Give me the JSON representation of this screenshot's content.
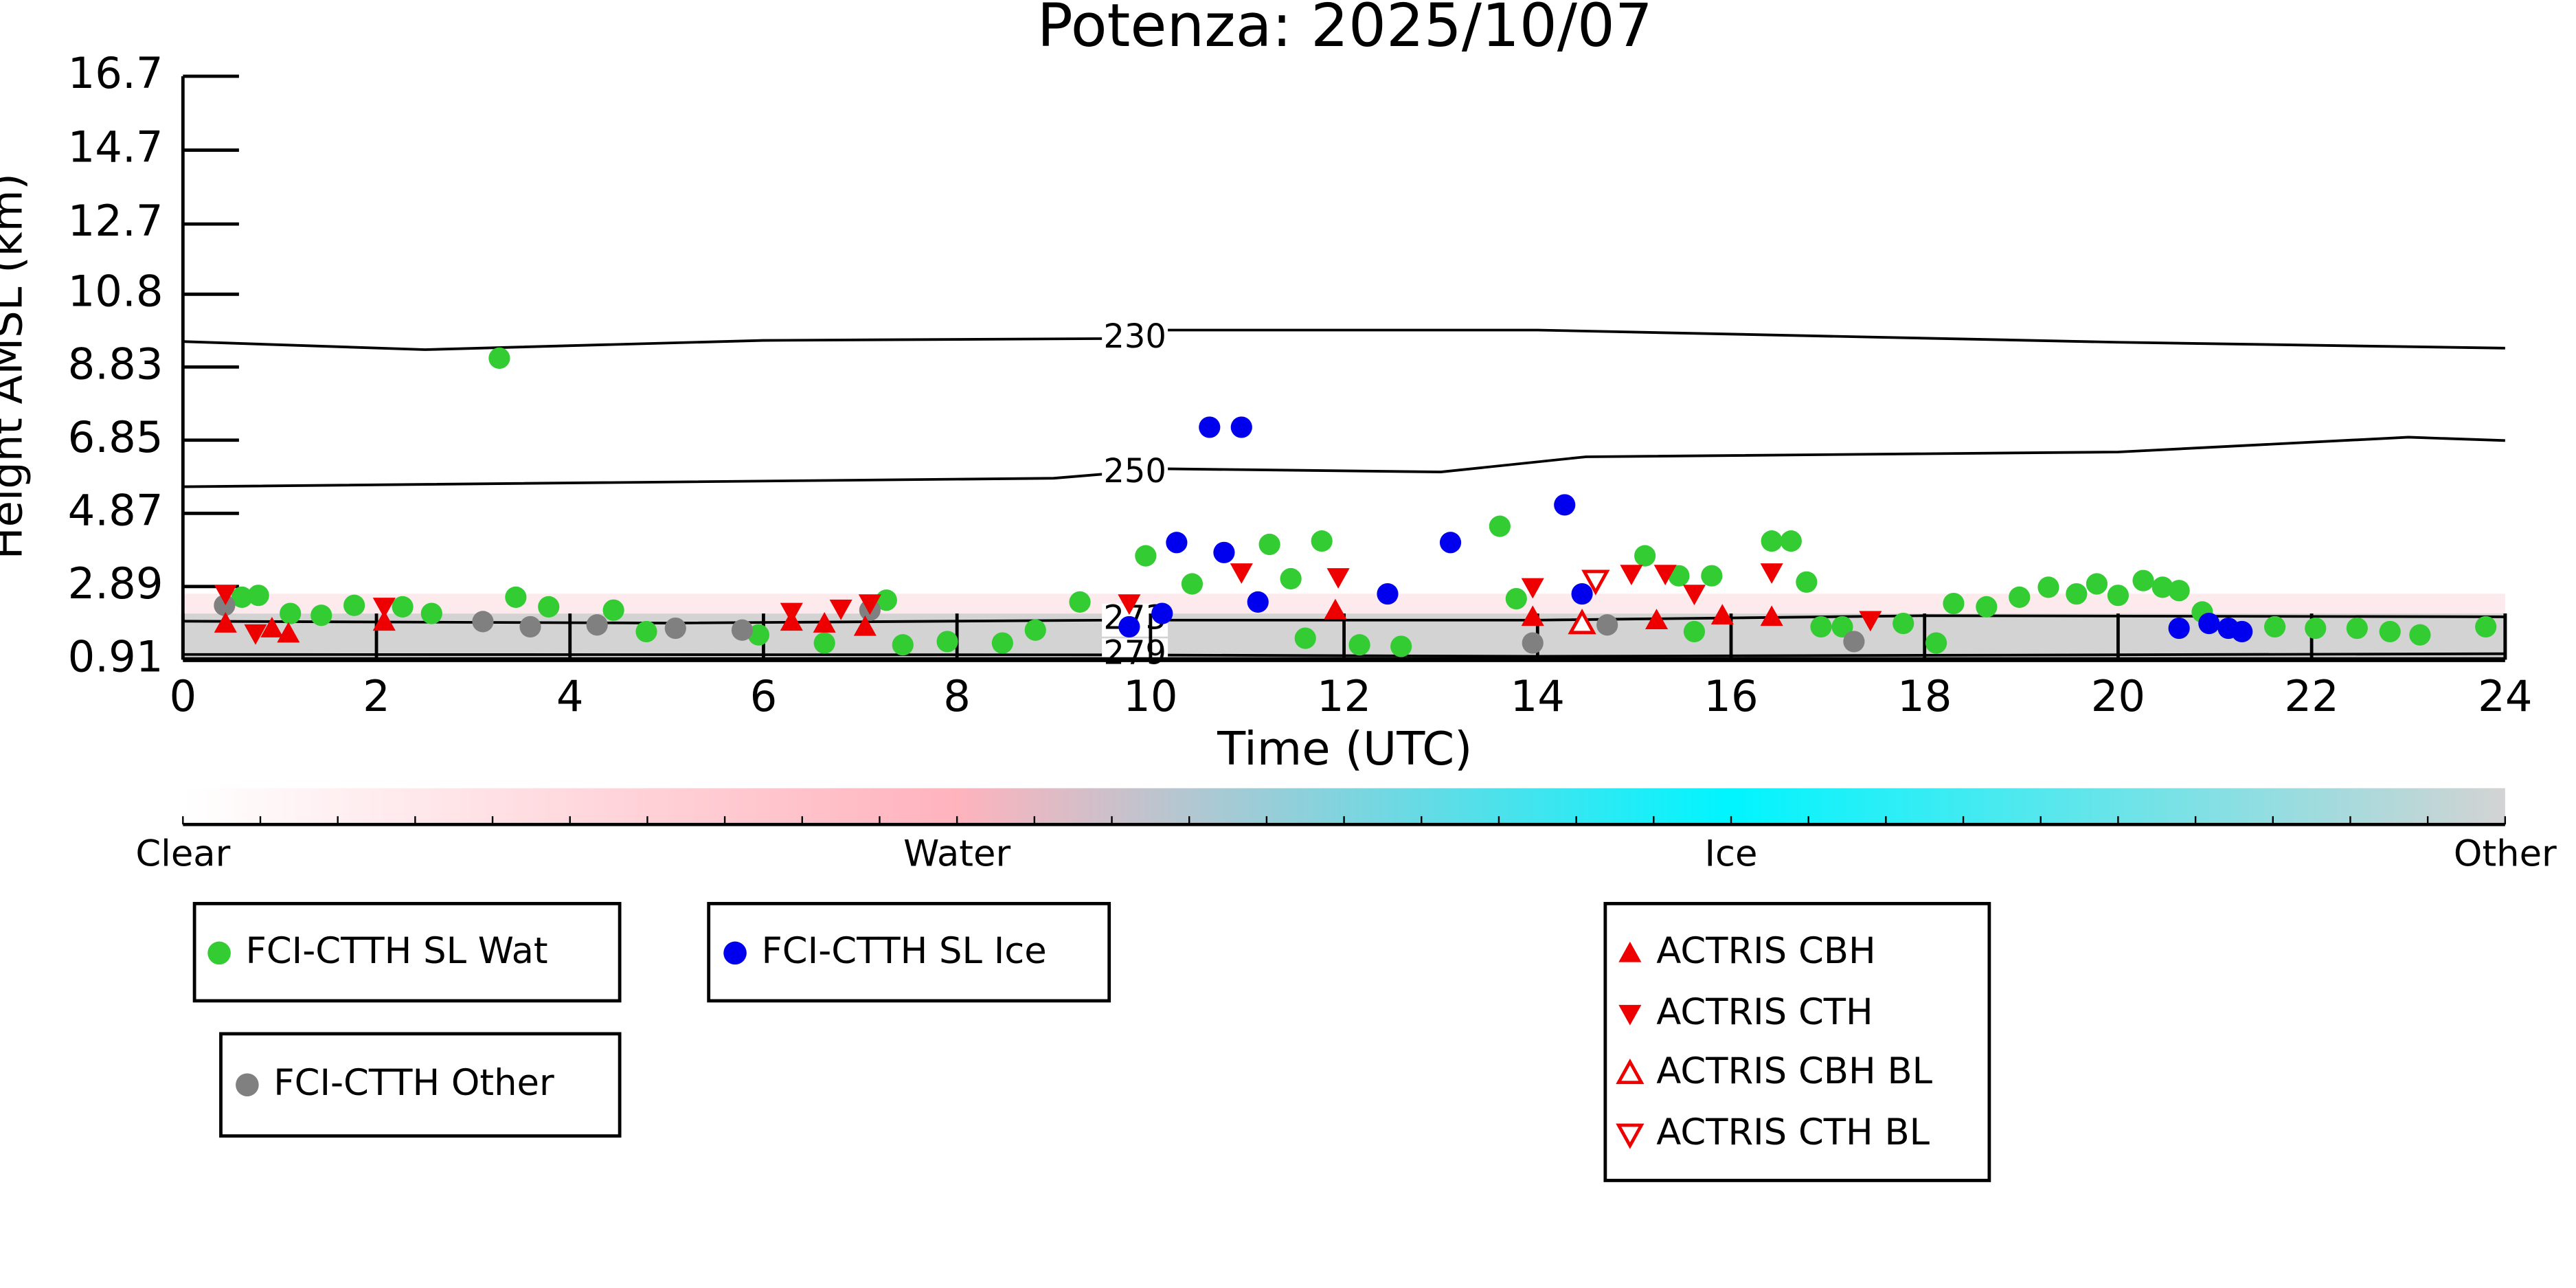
{
  "chart_data": {
    "type": "scatter",
    "title": "Potenza: 2025/10/07",
    "x_label": "Time (UTC)",
    "y_label": "Height AMSL (km)",
    "xlim": [
      0,
      24
    ],
    "xticks": [
      0,
      2,
      4,
      6,
      8,
      10,
      12,
      14,
      16,
      18,
      20,
      22,
      24
    ],
    "ylim": [
      0.91,
      16.7
    ],
    "yticks": [
      0.91,
      2.89,
      4.87,
      6.85,
      8.83,
      10.8,
      12.7,
      14.7,
      16.7
    ],
    "colorbar": {
      "labels": [
        "Clear",
        "Water",
        "Ice",
        "Other"
      ]
    },
    "contours": [
      {
        "level": 230,
        "x": [
          0,
          2.5,
          6,
          9.6,
          10,
          14,
          20,
          24
        ],
        "y": [
          9.52,
          9.3,
          9.55,
          9.6,
          9.83,
          9.83,
          9.5,
          9.34
        ]
      },
      {
        "level": 250,
        "x": [
          0,
          9,
          9.6,
          10,
          13,
          14.5,
          20,
          23,
          24
        ],
        "y": [
          5.59,
          5.82,
          5.95,
          6.08,
          5.99,
          6.4,
          6.53,
          6.93,
          6.84
        ]
      },
      {
        "level": 273,
        "x": [
          0,
          5,
          9.6,
          14,
          18,
          24
        ],
        "y": [
          1.95,
          1.9,
          1.98,
          1.98,
          2.1,
          2.07
        ]
      },
      {
        "level": 279,
        "x": [
          0,
          9.6,
          14,
          24
        ],
        "y": [
          1.05,
          1.04,
          1.0,
          1.07
        ]
      }
    ],
    "series": [
      {
        "name": "FCI-CTTH SL Wat",
        "color": "#33cc33",
        "marker": "circle",
        "filled": true,
        "x": [
          3.27,
          11.23,
          11.77,
          13.61,
          9.95,
          15.11,
          16.42,
          16.62,
          16.78,
          10.43,
          11.45,
          13.78,
          15.46,
          15.8,
          3.44,
          3.78,
          1.77,
          2.27,
          2.57,
          0.61,
          0.78,
          1.11,
          1.43,
          4.45,
          4.79,
          7.27,
          7.44,
          7.9,
          8.47,
          8.81,
          9.27,
          11.6,
          12.16,
          12.59,
          15.62,
          16.93,
          17.15,
          17.78,
          18.12,
          18.3,
          18.64,
          18.98,
          19.28,
          19.57,
          19.78,
          20.0,
          20.26,
          20.46,
          20.63,
          20.87,
          21.62,
          22.04,
          22.47,
          22.81,
          23.12,
          23.8,
          5.95,
          6.63
        ],
        "values": [
          9.07,
          4.03,
          4.12,
          4.52,
          3.72,
          3.72,
          4.12,
          4.12,
          3.01,
          2.96,
          3.1,
          2.56,
          3.18,
          3.18,
          2.6,
          2.34,
          2.38,
          2.34,
          2.16,
          2.6,
          2.65,
          2.16,
          2.11,
          2.25,
          1.67,
          2.52,
          1.31,
          1.4,
          1.36,
          1.71,
          2.47,
          1.49,
          1.31,
          1.27,
          1.67,
          1.8,
          1.8,
          1.89,
          1.36,
          2.43,
          2.34,
          2.6,
          2.87,
          2.69,
          2.96,
          2.65,
          3.05,
          2.87,
          2.78,
          2.2,
          1.8,
          1.76,
          1.76,
          1.67,
          1.58,
          1.8,
          1.58,
          1.36
        ]
      },
      {
        "name": "FCI-CTTH SL Ice",
        "color": "#0000ee",
        "marker": "circle",
        "filled": true,
        "x": [
          10.61,
          10.94,
          14.28,
          10.27,
          10.76,
          13.1,
          12.45,
          11.11,
          10.12,
          9.78,
          14.46,
          20.63,
          20.94,
          21.14,
          21.28
        ],
        "values": [
          7.2,
          7.2,
          5.1,
          4.08,
          3.81,
          4.08,
          2.69,
          2.47,
          2.16,
          1.8,
          2.69,
          1.76,
          1.89,
          1.76,
          1.67
        ]
      },
      {
        "name": "FCI-CTTH Other",
        "color": "#808080",
        "marker": "circle",
        "filled": true,
        "x": [
          0.43,
          3.1,
          3.59,
          4.28,
          5.09,
          5.78,
          7.1,
          13.95,
          14.72,
          17.27
        ],
        "values": [
          2.38,
          1.94,
          1.8,
          1.85,
          1.76,
          1.71,
          2.25,
          1.36,
          1.85,
          1.4
        ]
      },
      {
        "name": "ACTRIS CBH",
        "color": "#ee0000",
        "marker": "triangle-up",
        "filled": true,
        "x": [
          0.44,
          0.92,
          1.09,
          2.08,
          6.29,
          6.63,
          7.05,
          11.91,
          13.95,
          15.23,
          15.91,
          16.42
        ],
        "values": [
          1.89,
          1.76,
          1.62,
          1.94,
          1.94,
          1.89,
          1.8,
          2.25,
          2.07,
          1.98,
          2.11,
          2.07
        ]
      },
      {
        "name": "ACTRIS CTH",
        "color": "#ee0000",
        "marker": "triangle-down",
        "filled": true,
        "x": [
          0.44,
          0.75,
          2.08,
          6.29,
          6.8,
          7.1,
          9.78,
          10.94,
          11.94,
          13.95,
          14.97,
          15.32,
          15.62,
          16.42,
          17.44
        ],
        "values": [
          2.69,
          1.62,
          2.34,
          2.2,
          2.29,
          2.43,
          2.43,
          3.27,
          3.14,
          2.87,
          3.23,
          3.23,
          2.69,
          3.27,
          1.98
        ]
      },
      {
        "name": "ACTRIS CBH BL",
        "color": "#ee0000",
        "marker": "triangle-up",
        "filled": false,
        "x": [
          14.46
        ],
        "values": [
          1.89
        ]
      },
      {
        "name": "ACTRIS CTH BL",
        "color": "#ee0000",
        "marker": "triangle-down",
        "filled": false,
        "x": [
          14.6
        ],
        "values": [
          3.05
        ]
      }
    ]
  }
}
